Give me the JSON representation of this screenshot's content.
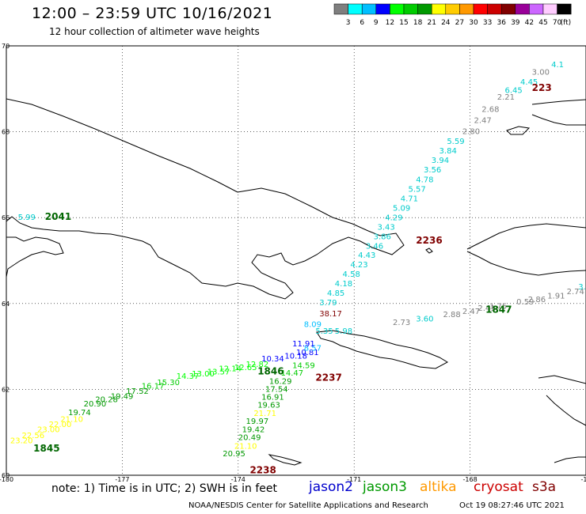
{
  "header": {
    "title": "12:00 – 23:59 UTC 10/16/2021",
    "subtitle": "12 hour collection of altimeter wave heights"
  },
  "legend": {
    "colors": [
      "#7f7f7f",
      "#00ffff",
      "#00bfff",
      "#0000ff",
      "#00ff00",
      "#00cc00",
      "#009900",
      "#ffff00",
      "#ffcc00",
      "#ff9900",
      "#ff0000",
      "#cc0000",
      "#800000",
      "#990099",
      "#cc66ff",
      "#ffccff",
      "#000000"
    ],
    "labels": [
      "3",
      "6",
      "9",
      "12",
      "15",
      "18",
      "21",
      "24",
      "27",
      "30",
      "33",
      "36",
      "39",
      "42",
      "45",
      "70"
    ],
    "unit": "(ft)"
  },
  "axes": {
    "lat_labels": [
      "70",
      "68",
      "66",
      "64",
      "62",
      "60"
    ],
    "lon_labels": [
      "-180",
      "-177",
      "-174",
      "-171",
      "-168",
      "-16"
    ]
  },
  "satellites": [
    {
      "name": "jason2",
      "color": "#0000cc"
    },
    {
      "name": "jason3",
      "color": "#009900"
    },
    {
      "name": "altika",
      "color": "#ff9900"
    },
    {
      "name": "cryosat",
      "color": "#cc0000"
    },
    {
      "name": "s3a",
      "color": "#800000"
    }
  ],
  "pass_times": [
    {
      "label": "2041",
      "color": "#006600",
      "lon": -179.0,
      "lat": 65.95
    },
    {
      "label": "2236",
      "color": "#800000",
      "lon": -169.4,
      "lat": 65.4
    },
    {
      "label": "1847",
      "color": "#006600",
      "lon": -167.6,
      "lat": 63.78
    },
    {
      "label": "1846",
      "color": "#006600",
      "lon": -173.5,
      "lat": 62.35
    },
    {
      "label": "2237",
      "color": "#800000",
      "lon": -172.0,
      "lat": 62.2
    },
    {
      "label": "1845",
      "color": "#006600",
      "lon": -179.3,
      "lat": 60.55
    },
    {
      "label": "2238",
      "color": "#800000",
      "lon": -173.7,
      "lat": 60.05
    },
    {
      "label": "223",
      "color": "#800000",
      "lon": -166.4,
      "lat": 68.95
    }
  ],
  "wave_labels": [
    {
      "text": "4.1",
      "color": "#00cccc",
      "lon": -165.9,
      "lat": 69.5
    },
    {
      "text": "3.00",
      "color": "#7f7f7f",
      "lon": -166.4,
      "lat": 69.33
    },
    {
      "text": "4.45",
      "color": "#00cccc",
      "lon": -166.7,
      "lat": 69.1
    },
    {
      "text": "6.45",
      "color": "#00cccc",
      "lon": -167.1,
      "lat": 68.9
    },
    {
      "text": "2.21",
      "color": "#7f7f7f",
      "lon": -167.3,
      "lat": 68.75
    },
    {
      "text": "2.68",
      "color": "#7f7f7f",
      "lon": -167.7,
      "lat": 68.46
    },
    {
      "text": "2.47",
      "color": "#7f7f7f",
      "lon": -167.9,
      "lat": 68.2
    },
    {
      "text": "2.80",
      "color": "#7f7f7f",
      "lon": -168.2,
      "lat": 67.95
    },
    {
      "text": "5.59",
      "color": "#00cccc",
      "lon": -168.6,
      "lat": 67.72
    },
    {
      "text": "3.84",
      "color": "#00cccc",
      "lon": -168.8,
      "lat": 67.5
    },
    {
      "text": "3.94",
      "color": "#00cccc",
      "lon": -169.0,
      "lat": 67.27
    },
    {
      "text": "3.56",
      "color": "#00cccc",
      "lon": -169.2,
      "lat": 67.05
    },
    {
      "text": "4.78",
      "color": "#00cccc",
      "lon": -169.4,
      "lat": 66.82
    },
    {
      "text": "5.57",
      "color": "#00cccc",
      "lon": -169.6,
      "lat": 66.6
    },
    {
      "text": "4.71",
      "color": "#00cccc",
      "lon": -169.8,
      "lat": 66.38
    },
    {
      "text": "5.09",
      "color": "#00cccc",
      "lon": -170.0,
      "lat": 66.16
    },
    {
      "text": "4.29",
      "color": "#00cccc",
      "lon": -170.2,
      "lat": 65.94
    },
    {
      "text": "3.43",
      "color": "#00cccc",
      "lon": -170.4,
      "lat": 65.72
    },
    {
      "text": "3.86",
      "color": "#00cccc",
      "lon": -170.5,
      "lat": 65.5
    },
    {
      "text": "3.46",
      "color": "#00cccc",
      "lon": -170.7,
      "lat": 65.28
    },
    {
      "text": "4.43",
      "color": "#00cccc",
      "lon": -170.9,
      "lat": 65.06
    },
    {
      "text": "4.23",
      "color": "#00cccc",
      "lon": -171.1,
      "lat": 64.84
    },
    {
      "text": "4.58",
      "color": "#00cccc",
      "lon": -171.3,
      "lat": 64.62
    },
    {
      "text": "4.18",
      "color": "#00cccc",
      "lon": -171.5,
      "lat": 64.4
    },
    {
      "text": "4.85",
      "color": "#00cccc",
      "lon": -171.7,
      "lat": 64.18
    },
    {
      "text": "3.79",
      "color": "#00cccc",
      "lon": -171.9,
      "lat": 63.96
    },
    {
      "text": "5.99",
      "color": "#00cccc",
      "lon": -179.7,
      "lat": 65.95
    },
    {
      "text": "38.17",
      "color": "#800000",
      "lon": -171.9,
      "lat": 63.7
    },
    {
      "text": "2.73",
      "color": "#7f7f7f",
      "lon": -170.0,
      "lat": 63.5
    },
    {
      "text": "3.60",
      "color": "#00cccc",
      "lon": -169.4,
      "lat": 63.58
    },
    {
      "text": "2.88",
      "color": "#7f7f7f",
      "lon": -168.7,
      "lat": 63.68
    },
    {
      "text": "2.47",
      "color": "#7f7f7f",
      "lon": -168.2,
      "lat": 63.76
    },
    {
      "text": "2.41",
      "color": "#7f7f7f",
      "lon": -167.8,
      "lat": 63.83
    },
    {
      "text": "1.75",
      "color": "#7f7f7f",
      "lon": -167.5,
      "lat": 63.88
    },
    {
      "text": "0.59",
      "color": "#7f7f7f",
      "lon": -166.8,
      "lat": 63.98
    },
    {
      "text": "2.86",
      "color": "#7f7f7f",
      "lon": -166.5,
      "lat": 64.03
    },
    {
      "text": "1.91",
      "color": "#7f7f7f",
      "lon": -166.0,
      "lat": 64.12
    },
    {
      "text": "2.74",
      "color": "#7f7f7f",
      "lon": -165.5,
      "lat": 64.22
    },
    {
      "text": "3.36",
      "color": "#00cccc",
      "lon": -165.2,
      "lat": 64.33
    },
    {
      "text": "8.09",
      "color": "#00bfff",
      "lon": -172.3,
      "lat": 63.45
    },
    {
      "text": "5.35",
      "color": "#00cccc",
      "lon": -172.0,
      "lat": 63.3
    },
    {
      "text": "5.98",
      "color": "#00cccc",
      "lon": -171.5,
      "lat": 63.3
    },
    {
      "text": "10.34",
      "color": "#0000ff",
      "lon": -173.4,
      "lat": 62.65
    },
    {
      "text": "10.18",
      "color": "#0000ff",
      "lon": -172.8,
      "lat": 62.72
    },
    {
      "text": "10.81",
      "color": "#0000ff",
      "lon": -172.5,
      "lat": 62.8
    },
    {
      "text": "8.57",
      "color": "#00bfff",
      "lon": -172.3,
      "lat": 62.9
    },
    {
      "text": "11.91",
      "color": "#0000ff",
      "lon": -172.6,
      "lat": 63.0
    },
    {
      "text": "14.59",
      "color": "#00cc00",
      "lon": -172.6,
      "lat": 62.5
    },
    {
      "text": "14.47",
      "color": "#00cc00",
      "lon": -172.9,
      "lat": 62.32
    },
    {
      "text": "16.29",
      "color": "#009900",
      "lon": -173.2,
      "lat": 62.13
    },
    {
      "text": "17.54",
      "color": "#009900",
      "lon": -173.3,
      "lat": 61.94
    },
    {
      "text": "16.91",
      "color": "#009900",
      "lon": -173.4,
      "lat": 61.76
    },
    {
      "text": "19.63",
      "color": "#009900",
      "lon": -173.5,
      "lat": 61.57
    },
    {
      "text": "21.71",
      "color": "#ffff00",
      "lon": -173.6,
      "lat": 61.38
    },
    {
      "text": "19.97",
      "color": "#009900",
      "lon": -173.8,
      "lat": 61.2
    },
    {
      "text": "19.42",
      "color": "#009900",
      "lon": -173.9,
      "lat": 61.0
    },
    {
      "text": "20.49",
      "color": "#009900",
      "lon": -174.0,
      "lat": 60.82
    },
    {
      "text": "21.10",
      "color": "#ffff00",
      "lon": -174.1,
      "lat": 60.62
    },
    {
      "text": "20.95",
      "color": "#009900",
      "lon": -174.4,
      "lat": 60.44
    },
    {
      "text": "12.82",
      "color": "#00ff00",
      "lon": -173.8,
      "lat": 62.52
    },
    {
      "text": "12.65",
      "color": "#00ff00",
      "lon": -174.1,
      "lat": 62.45
    },
    {
      "text": "12.14",
      "color": "#00ff00",
      "lon": -174.5,
      "lat": 62.42
    },
    {
      "text": "13.57",
      "color": "#00ff00",
      "lon": -174.8,
      "lat": 62.35
    },
    {
      "text": "13.00",
      "color": "#00ff00",
      "lon": -175.2,
      "lat": 62.3
    },
    {
      "text": "14.37",
      "color": "#00ff00",
      "lon": -175.6,
      "lat": 62.25
    },
    {
      "text": "15.30",
      "color": "#00cc00",
      "lon": -176.1,
      "lat": 62.1
    },
    {
      "text": "16.17",
      "color": "#00cc00",
      "lon": -176.5,
      "lat": 62.02
    },
    {
      "text": "17.52",
      "color": "#009900",
      "lon": -176.9,
      "lat": 61.9
    },
    {
      "text": "19.49",
      "color": "#009900",
      "lon": -177.3,
      "lat": 61.78
    },
    {
      "text": "20.28",
      "color": "#009900",
      "lon": -177.7,
      "lat": 61.7
    },
    {
      "text": "20.90",
      "color": "#009900",
      "lon": -178.0,
      "lat": 61.6
    },
    {
      "text": "19.74",
      "color": "#009900",
      "lon": -178.4,
      "lat": 61.4
    },
    {
      "text": "21.10",
      "color": "#ffff00",
      "lon": -178.6,
      "lat": 61.24
    },
    {
      "text": "22.00",
      "color": "#ffff00",
      "lon": -178.9,
      "lat": 61.12
    },
    {
      "text": "23.00",
      "color": "#ffff00",
      "lon": -179.2,
      "lat": 61.0
    },
    {
      "text": "22.56",
      "color": "#ffff00",
      "lon": -179.6,
      "lat": 60.87
    },
    {
      "text": "23.20",
      "color": "#ffff00",
      "lon": -179.9,
      "lat": 60.75
    }
  ],
  "footer": {
    "note": "note:  1) Time is in UTC; 2) SWH is in feet",
    "credit": "NOAA/NESDIS Center for Satellite Applications and Research",
    "timestamp": "Oct 19 08:27:46 UTC 2021"
  }
}
